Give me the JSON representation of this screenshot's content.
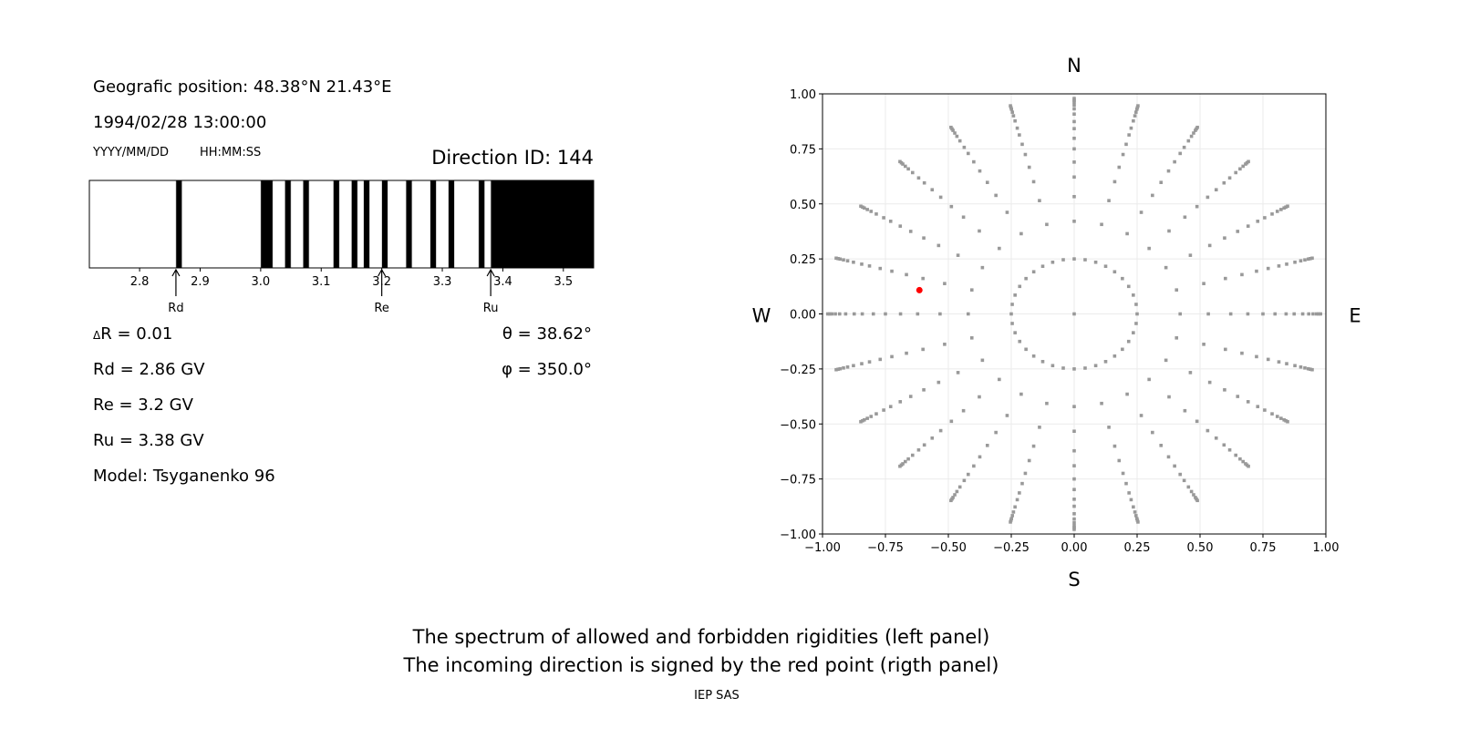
{
  "info": {
    "position": "Geografic position: 48.38°N 21.43°E",
    "datetime": "1994/02/28 13:00:00",
    "date_format": "YYYY/MM/DD",
    "time_format": "HH:MM:SS",
    "direction_id": "Direction ID: 144",
    "delta_r_symbol": "Δ",
    "delta_r": "R = 0.01",
    "rd": "Rd = 2.86 GV",
    "re": "Re = 3.2 GV",
    "ru": "Ru = 3.38 GV",
    "model": "Model: Tsyganenko 96",
    "theta": "θ = 38.62°",
    "phi": "φ = 350.0°"
  },
  "footer": {
    "line1": "The spectrum of allowed and forbidden rigidities (left panel)",
    "line2": "The incoming direction is signed by the red point (rigth panel)",
    "credit": "IEP SAS"
  },
  "chart_data": [
    {
      "type": "bar",
      "xlim": [
        2.717,
        3.55
      ],
      "xticks": [
        2.8,
        2.9,
        3.0,
        3.1,
        3.2,
        3.3,
        3.4,
        3.5
      ],
      "xtick_labels": [
        "2.8",
        "2.9",
        "3.0",
        "3.1",
        "3.2",
        "3.3",
        "3.4",
        "3.5"
      ],
      "band_color": "#000000",
      "bands": [
        [
          2.86,
          2.87
        ],
        [
          3.0,
          3.02
        ],
        [
          3.04,
          3.05
        ],
        [
          3.07,
          3.08
        ],
        [
          3.12,
          3.13
        ],
        [
          3.15,
          3.16
        ],
        [
          3.17,
          3.18
        ],
        [
          3.2,
          3.21
        ],
        [
          3.24,
          3.25
        ],
        [
          3.28,
          3.29
        ],
        [
          3.31,
          3.32
        ],
        [
          3.36,
          3.37
        ],
        [
          3.38,
          3.55
        ]
      ],
      "annotations": [
        {
          "label": "Rd",
          "x": 2.86
        },
        {
          "label": "Re",
          "x": 3.2
        },
        {
          "label": "Ru",
          "x": 3.38
        }
      ]
    },
    {
      "type": "scatter",
      "xlim": [
        -1,
        1
      ],
      "ylim": [
        -1,
        1
      ],
      "grid": true,
      "ticks": [
        -1.0,
        -0.75,
        -0.5,
        -0.25,
        0.0,
        0.25,
        0.5,
        0.75,
        1.0
      ],
      "tick_labels": [
        "−1.00",
        "−0.75",
        "−0.50",
        "−0.25",
        "0.00",
        "0.25",
        "0.50",
        "0.75",
        "1.00"
      ],
      "compass": {
        "north": "N",
        "south": "S",
        "east": "E",
        "west": "W"
      },
      "point_color": "#999999",
      "highlight_color": "#ff0000",
      "spoke_azimuth_step_deg": 15,
      "spoke_radii": [
        0.421,
        0.533,
        0.622,
        0.69,
        0.75,
        0.798,
        0.842,
        0.874,
        0.908,
        0.932,
        0.949,
        0.963,
        0.971,
        0.979
      ],
      "inner_circle_radius": 0.25,
      "inner_circle_step_deg": 10,
      "center_point": [
        0,
        0
      ],
      "highlight_point": [
        -0.615,
        0.108
      ]
    }
  ]
}
